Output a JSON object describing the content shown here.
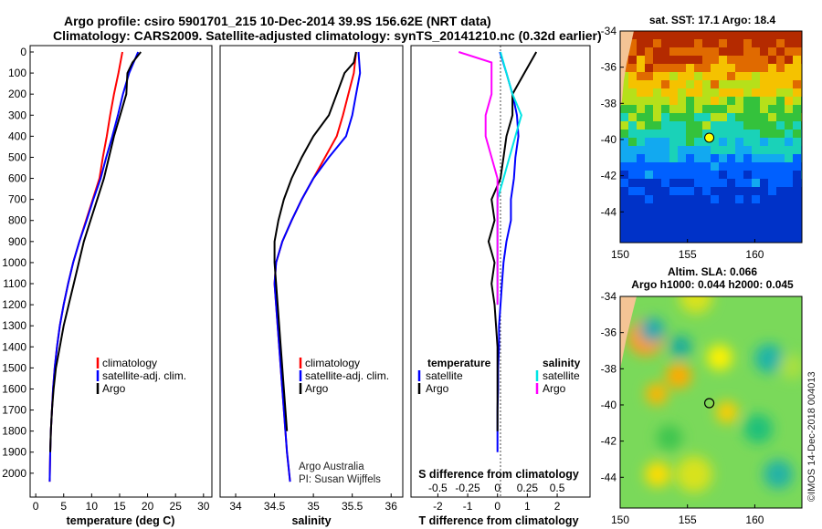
{
  "header": {
    "title_line1": "Argo profile: csiro 5901701_215 10-Dec-2014 39.9S 156.62E (NRT data)",
    "title_line2": "Climatology: CARS2009. Satellite-adjusted climatology: synTS_20141210.nc (0.32d earlier)"
  },
  "credit": {
    "line1": "Argo Australia",
    "line2": "PI: Susan Wijffels"
  },
  "watermark": "©IMOS 14-Dec-2018 004013",
  "colors": {
    "climatology": "#ff0000",
    "satellite": "#0000ff",
    "argo": "#000000",
    "sat_salinity": "#00e5e5",
    "argo_salinity": "#ff00ff"
  },
  "chart_data": [
    {
      "type": "line",
      "xlabel": "temperature (deg C)",
      "ylabel": "",
      "xlim": [
        -1,
        31.5
      ],
      "ylim": [
        2070,
        0
      ],
      "xticks": [
        0,
        5,
        10,
        15,
        20,
        25,
        30
      ],
      "xtick_labels": [
        "0",
        "5",
        "10",
        "15",
        "20",
        "25",
        "30"
      ],
      "yticks": [
        0,
        100,
        200,
        300,
        400,
        500,
        600,
        700,
        800,
        900,
        1000,
        1100,
        1200,
        1300,
        1400,
        1500,
        1600,
        1700,
        1800,
        1900,
        2000
      ],
      "ytick_labels": [
        "0",
        "100",
        "200",
        "300",
        "400",
        "500",
        "600",
        "700",
        "800",
        "900",
        "1000",
        "1100",
        "1200",
        "1300",
        "1400",
        "1500",
        "1600",
        "1700",
        "1800",
        "1900",
        "2000"
      ],
      "legend": [
        "climatology",
        "satellite-adj. clim.",
        "Argo"
      ],
      "series": [
        {
          "name": "climatology",
          "color": "#ff0000",
          "x": [
            15.5,
            14.8,
            14.0,
            13.3,
            12.7,
            12.0,
            11.4,
            10.2,
            9.0,
            7.8,
            6.7,
            5.8,
            5.0,
            4.3,
            3.8,
            3.4,
            3.1,
            2.9,
            2.7,
            2.6,
            2.5
          ],
          "y": [
            0,
            100,
            200,
            300,
            400,
            500,
            600,
            700,
            800,
            900,
            1000,
            1100,
            1200,
            1300,
            1400,
            1500,
            1600,
            1700,
            1800,
            1900,
            2040
          ]
        },
        {
          "name": "satellite-adj. clim.",
          "color": "#0000ff",
          "x": [
            18.3,
            16.7,
            15.6,
            14.7,
            13.7,
            12.6,
            11.6,
            10.3,
            9.1,
            7.8,
            6.7,
            5.8,
            5.0,
            4.3,
            3.8,
            3.4,
            3.1,
            2.9,
            2.7,
            2.6,
            2.5
          ],
          "y": [
            0,
            100,
            200,
            300,
            400,
            500,
            600,
            700,
            800,
            900,
            1000,
            1100,
            1200,
            1300,
            1400,
            1500,
            1600,
            1700,
            1800,
            1900,
            2040
          ]
        },
        {
          "name": "Argo",
          "color": "#000000",
          "x": [
            18.8,
            17.3,
            16.4,
            16.2,
            15.1,
            14.0,
            13.1,
            12.2,
            11.0,
            9.8,
            8.6,
            7.7,
            6.8,
            5.9,
            5.0,
            4.3,
            3.6,
            3.2,
            2.9,
            2.7,
            2.6
          ],
          "y": [
            0,
            50,
            100,
            200,
            300,
            400,
            500,
            600,
            700,
            800,
            900,
            1000,
            1100,
            1200,
            1300,
            1400,
            1500,
            1600,
            1700,
            1800,
            1900
          ]
        }
      ]
    },
    {
      "type": "line",
      "xlabel": "salinity",
      "xlim": [
        33.8,
        36.15
      ],
      "ylim": [
        2070,
        0
      ],
      "xticks": [
        34,
        34.5,
        35,
        35.5,
        36
      ],
      "xtick_labels": [
        "34",
        "34.5",
        "35",
        "35.5",
        "36"
      ],
      "legend": [
        "climatology",
        "satellite-adj. clim.",
        "Argo"
      ],
      "series": [
        {
          "name": "climatology",
          "color": "#ff0000",
          "x": [
            35.55,
            35.52,
            35.45,
            35.38,
            35.3,
            35.15,
            35.0,
            34.85,
            34.72,
            34.6,
            34.52,
            34.5,
            34.52,
            34.54,
            34.56,
            34.58,
            34.6,
            34.62,
            34.64,
            34.66,
            34.7
          ],
          "y": [
            0,
            100,
            200,
            300,
            400,
            500,
            600,
            700,
            800,
            900,
            1000,
            1100,
            1200,
            1300,
            1400,
            1500,
            1600,
            1700,
            1800,
            1900,
            2040
          ]
        },
        {
          "name": "satellite-adj. clim.",
          "color": "#0000ff",
          "x": [
            35.58,
            35.6,
            35.55,
            35.5,
            35.42,
            35.2,
            35.0,
            34.85,
            34.72,
            34.6,
            34.52,
            34.5,
            34.52,
            34.54,
            34.56,
            34.58,
            34.6,
            34.62,
            34.64,
            34.66,
            34.7
          ],
          "y": [
            0,
            100,
            200,
            300,
            400,
            500,
            600,
            700,
            800,
            900,
            1000,
            1100,
            1200,
            1300,
            1400,
            1500,
            1600,
            1700,
            1800,
            1900,
            2040
          ]
        },
        {
          "name": "Argo",
          "color": "#000000",
          "x": [
            35.55,
            35.52,
            35.4,
            35.3,
            35.2,
            35.0,
            34.85,
            34.72,
            34.62,
            34.55,
            34.5,
            34.5,
            34.52,
            34.54,
            34.56,
            34.58,
            34.6,
            34.62,
            34.64,
            34.66
          ],
          "y": [
            0,
            50,
            100,
            200,
            300,
            400,
            500,
            600,
            700,
            800,
            900,
            1000,
            1100,
            1200,
            1300,
            1400,
            1500,
            1600,
            1700,
            1800
          ]
        }
      ]
    },
    {
      "type": "line",
      "xlabel": "T difference from climatology",
      "xlabel_top": "S difference from climatology",
      "xlim": [
        -2.9,
        3.1
      ],
      "ylim": [
        2070,
        0
      ],
      "xticks": [
        -2,
        -1,
        0,
        1,
        2
      ],
      "xtick_labels": [
        "-2",
        "-1",
        "0",
        "1",
        "2"
      ],
      "s_axis_ticks": [
        -0.5,
        -0.25,
        0,
        0.25,
        0.5
      ],
      "s_axis_tick_labels": [
        "-0.5",
        "-0.25",
        "0",
        "0.25",
        "0.5"
      ],
      "legend_left_title": "temperature",
      "legend_right_title": "salinity",
      "legend_left": [
        "satellite",
        "Argo"
      ],
      "legend_right": [
        "satellite",
        "Argo"
      ],
      "series": [
        {
          "name": "satellite",
          "color": "#0000ff",
          "x": [
            0.08,
            0.3,
            0.5,
            0.65,
            0.7,
            0.6,
            0.55,
            0.45,
            0.45,
            0.3,
            0.2,
            0.15,
            0.1,
            0.05,
            0.05,
            0.02,
            0.02,
            0.0,
            0.0,
            0.0
          ],
          "y": [
            0,
            100,
            200,
            300,
            400,
            500,
            600,
            700,
            800,
            900,
            1000,
            1100,
            1200,
            1300,
            1400,
            1500,
            1600,
            1700,
            1800,
            1900
          ]
        },
        {
          "name": "Argo",
          "color": "#000000",
          "x": [
            1.3,
            0.9,
            0.5,
            0.5,
            0.3,
            0.2,
            0.1,
            -0.2,
            -0.1,
            -0.3,
            -0.1,
            -0.2,
            -0.1,
            -0.05,
            0.0,
            0.0,
            0.0,
            0.0,
            0.0
          ],
          "y": [
            0,
            100,
            200,
            300,
            400,
            500,
            600,
            700,
            800,
            900,
            1000,
            1100,
            1200,
            1300,
            1400,
            1500,
            1600,
            1700,
            1800
          ]
        },
        {
          "name": "satellite",
          "color": "#00e5e5",
          "x": [
            0.1,
            0.3,
            0.5,
            0.8,
            0.6,
            0.4,
            0.2,
            0.0,
            0.0,
            0.0,
            0.0,
            0.0
          ],
          "y": [
            0,
            100,
            200,
            300,
            400,
            500,
            600,
            700,
            800,
            900,
            1000,
            1200
          ]
        },
        {
          "name": "Argo",
          "color": "#ff00ff",
          "x": [
            -1.3,
            -0.2,
            -0.2,
            -0.4,
            -0.4,
            -0.2,
            0.0,
            0.0,
            0.0,
            0.0,
            0.0,
            0.0
          ],
          "y": [
            0,
            50,
            200,
            300,
            400,
            500,
            600,
            700,
            800,
            900,
            1000,
            1200
          ]
        }
      ]
    },
    {
      "type": "heatmap",
      "title": "sat. SST: 17.1 Argo: 18.4",
      "xlim": [
        150,
        163.5
      ],
      "ylim": [
        -45.7,
        -34
      ],
      "xticks": [
        150,
        155,
        160
      ],
      "xtick_labels": [
        "150",
        "155",
        "160"
      ],
      "yticks": [
        -34,
        -36,
        -38,
        -40,
        -42,
        -44
      ],
      "ytick_labels": [
        "-34",
        "-36",
        "-38",
        "-40",
        "-42",
        "-44"
      ],
      "marker": {
        "lon": 156.62,
        "lat": -39.9
      }
    },
    {
      "type": "heatmap",
      "title_line1": "Altim. SLA: 0.066",
      "title_line2": "Argo h1000: 0.044 h2000: 0.045",
      "xlim": [
        150,
        163.5
      ],
      "ylim": [
        -45.7,
        -34
      ],
      "xticks": [
        150,
        155,
        160
      ],
      "xtick_labels": [
        "150",
        "155",
        "160"
      ],
      "yticks": [
        -34,
        -36,
        -38,
        -40,
        -42,
        -44
      ],
      "ytick_labels": [
        "-34",
        "-36",
        "-38",
        "-40",
        "-42",
        "-44"
      ],
      "marker": {
        "lon": 156.62,
        "lat": -39.9
      }
    }
  ]
}
